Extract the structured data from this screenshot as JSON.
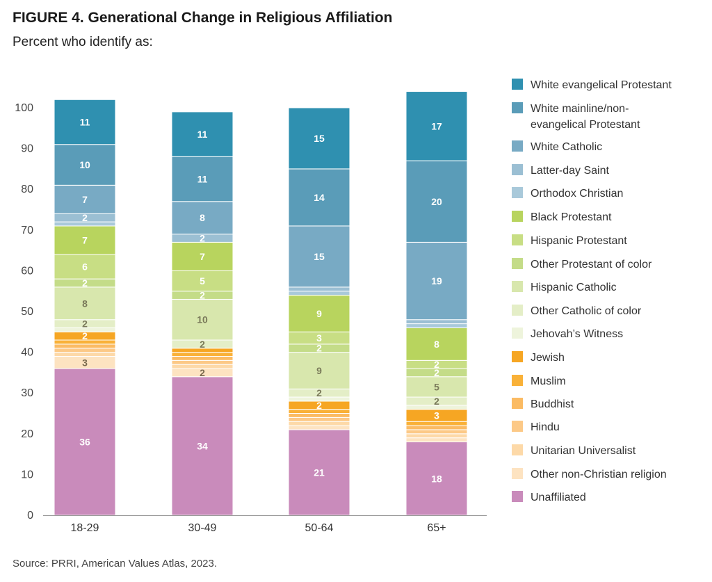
{
  "title": "FIGURE 4. Generational Change in Religious Affiliation",
  "subtitle": "Percent who identify as:",
  "source": "Source: PRRI, American Values Atlas, 2023.",
  "chart_data": {
    "type": "bar",
    "stacked": true,
    "ylim": [
      0,
      100
    ],
    "yticks": [
      0,
      10,
      20,
      30,
      40,
      50,
      60,
      70,
      80,
      90,
      100
    ],
    "categories": [
      "18-29",
      "30-49",
      "50-64",
      "65+"
    ],
    "legend_position": "right",
    "series": [
      {
        "name": "Unaffiliated",
        "color": "#c98bbb",
        "label_color": "#ffffff",
        "values": [
          36,
          34,
          21,
          18
        ],
        "labels": [
          "36",
          "34",
          "21",
          "18"
        ]
      },
      {
        "name": "Other non-Christian religion",
        "color": "#fde3c1",
        "label_color": "#7a6a4f",
        "values": [
          3,
          2,
          1,
          1
        ],
        "labels": [
          "3",
          "2",
          "",
          ""
        ]
      },
      {
        "name": "Unitarian Universalist",
        "color": "#fdd9a8",
        "label_color": "#7a6a4f",
        "values": [
          1,
          1,
          1,
          1
        ],
        "labels": [
          "",
          "",
          "",
          ""
        ]
      },
      {
        "name": "Hindu",
        "color": "#fcc987",
        "label_color": "#7a6a4f",
        "values": [
          1,
          1,
          1,
          1
        ],
        "labels": [
          "",
          "",
          "",
          ""
        ]
      },
      {
        "name": "Buddhist",
        "color": "#fbbb63",
        "label_color": "#7a6a4f",
        "values": [
          1,
          1,
          1,
          1
        ],
        "labels": [
          "",
          "",
          "",
          ""
        ]
      },
      {
        "name": "Muslim",
        "color": "#f9b138",
        "label_color": "#ffffff",
        "values": [
          1,
          1,
          1,
          1
        ],
        "labels": [
          "",
          "",
          "",
          ""
        ]
      },
      {
        "name": "Jewish",
        "color": "#f6a623",
        "label_color": "#ffffff",
        "values": [
          2,
          1,
          2,
          3
        ],
        "labels": [
          "2",
          "",
          "2",
          "3"
        ]
      },
      {
        "name": "Jehovah's Witness",
        "color": "#eef4dc",
        "label_color": "#7a7a5a",
        "values": [
          1,
          0,
          1,
          1
        ],
        "labels": [
          "",
          "",
          "",
          ""
        ]
      },
      {
        "name": "Other Catholic of color",
        "color": "#e4eec7",
        "label_color": "#7a7a5a",
        "values": [
          2,
          2,
          2,
          2
        ],
        "labels": [
          "2",
          "2",
          "2",
          "2"
        ]
      },
      {
        "name": "Hispanic Catholic",
        "color": "#d8e7ad",
        "label_color": "#7a7a5a",
        "values": [
          8,
          10,
          9,
          5
        ],
        "labels": [
          "8",
          "10",
          "9",
          "5"
        ]
      },
      {
        "name": "Other Protestant of color",
        "color": "#c4dc88",
        "label_color": "#ffffff",
        "values": [
          2,
          2,
          2,
          2
        ],
        "labels": [
          "2",
          "2",
          "2",
          "2"
        ]
      },
      {
        "name": "Hispanic Protestant",
        "color": "#c8de84",
        "label_color": "#ffffff",
        "values": [
          6,
          5,
          3,
          2
        ],
        "labels": [
          "6",
          "5",
          "3",
          "2"
        ]
      },
      {
        "name": "Black Protestant",
        "color": "#b8d45e",
        "label_color": "#ffffff",
        "values": [
          7,
          7,
          9,
          8
        ],
        "labels": [
          "7",
          "7",
          "9",
          "8"
        ]
      },
      {
        "name": "Orthodox Christian",
        "color": "#a9c9da",
        "label_color": "#ffffff",
        "values": [
          1,
          0,
          1,
          1
        ],
        "labels": [
          "",
          "",
          "",
          ""
        ]
      },
      {
        "name": "Latter-day Saint",
        "color": "#9bbfd3",
        "label_color": "#ffffff",
        "values": [
          2,
          2,
          1,
          1
        ],
        "labels": [
          "2",
          "2",
          "",
          ""
        ]
      },
      {
        "name": "White Catholic",
        "color": "#78aac4",
        "label_color": "#ffffff",
        "values": [
          7,
          8,
          15,
          19
        ],
        "labels": [
          "7",
          "8",
          "15",
          "19"
        ]
      },
      {
        "name": "White mainline/non-evangelical Protestant",
        "color": "#5a9cb8",
        "label_color": "#ffffff",
        "values": [
          10,
          11,
          14,
          20
        ],
        "labels": [
          "10",
          "11",
          "14",
          "20"
        ]
      },
      {
        "name": "White evangelical Protestant",
        "color": "#2f90b0",
        "label_color": "#ffffff",
        "values": [
          11,
          11,
          15,
          17
        ],
        "labels": [
          "11",
          "11",
          "15",
          "17"
        ]
      }
    ],
    "legend": [
      {
        "label": "White evangelical Protestant",
        "color": "#2f90b0"
      },
      {
        "label": "White mainline/non-evangelical Protestant",
        "color": "#5a9cb8"
      },
      {
        "label": "White Catholic",
        "color": "#78aac4"
      },
      {
        "label": "Latter-day Saint",
        "color": "#9bbfd3"
      },
      {
        "label": "Orthodox Christian",
        "color": "#a9c9da"
      },
      {
        "label": "Black Protestant",
        "color": "#b8d45e"
      },
      {
        "label": "Hispanic Protestant",
        "color": "#c8de84"
      },
      {
        "label": "Other Protestant of color",
        "color": "#c4dc88"
      },
      {
        "label": "Hispanic Catholic",
        "color": "#d8e7ad"
      },
      {
        "label": "Other Catholic of color",
        "color": "#e4eec7"
      },
      {
        "label": "Jehovah’s Witness",
        "color": "#eef4dc"
      },
      {
        "label": "Jewish",
        "color": "#f6a623"
      },
      {
        "label": "Muslim",
        "color": "#f9b138"
      },
      {
        "label": "Buddhist",
        "color": "#fbbb63"
      },
      {
        "label": "Hindu",
        "color": "#fcc987"
      },
      {
        "label": "Unitarian Universalist",
        "color": "#fdd9a8"
      },
      {
        "label": "Other non-Christian religion",
        "color": "#fde3c1"
      },
      {
        "label": "Unaffiliated",
        "color": "#c98bbb"
      }
    ]
  }
}
